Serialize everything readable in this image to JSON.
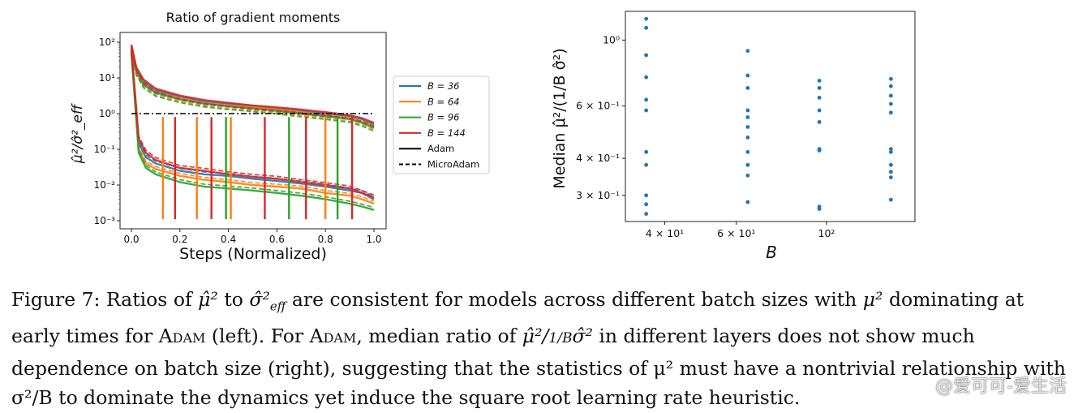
{
  "colors": {
    "b36": "#1f77b4",
    "b64": "#ff7f0e",
    "b96": "#2ca02c",
    "b144": "#d62728",
    "scatter": "#1f77b4"
  },
  "chart_data": [
    {
      "type": "line",
      "title": "Ratio of gradient moments",
      "xlabel": "Steps (Normalized)",
      "ylabel": "μ̂²/σ̂²_eff",
      "xlim": [
        0.0,
        1.0
      ],
      "ylim": [
        0.001,
        100
      ],
      "yscale": "log",
      "xticks": [
        "0.0",
        "0.2",
        "0.4",
        "0.6",
        "0.8",
        "1.0"
      ],
      "yticks": [
        "10²",
        "10¹",
        "10⁰",
        "10⁻¹",
        "10⁻²",
        "10⁻³"
      ],
      "reference_line": 1.0,
      "legend_position": "outside-right",
      "legend": [
        {
          "label": "B = 36",
          "color": "#1f77b4",
          "style": "solid"
        },
        {
          "label": "B = 64",
          "color": "#ff7f0e",
          "style": "solid"
        },
        {
          "label": "B = 96",
          "color": "#2ca02c",
          "style": "solid"
        },
        {
          "label": "B = 144",
          "color": "#d62728",
          "style": "solid"
        },
        {
          "label": "Adam",
          "color": "#000000",
          "style": "solid"
        },
        {
          "label": "MicroAdam",
          "color": "#000000",
          "style": "dashed"
        }
      ],
      "series": [
        {
          "name": "B = 36 upper",
          "color": "#1f77b4",
          "x": [
            0.0,
            0.02,
            0.05,
            0.1,
            0.2,
            0.3,
            0.4,
            0.5,
            0.6,
            0.7,
            0.8,
            0.9,
            0.95,
            1.0
          ],
          "y": [
            80,
            18,
            8,
            4.5,
            3.0,
            2.2,
            1.9,
            1.6,
            1.4,
            1.2,
            1.0,
            0.85,
            0.7,
            0.5
          ]
        },
        {
          "name": "B = 64 upper",
          "color": "#ff7f0e",
          "x": [
            0.0,
            0.02,
            0.05,
            0.1,
            0.2,
            0.3,
            0.4,
            0.5,
            0.6,
            0.7,
            0.8,
            0.9,
            0.95,
            1.0
          ],
          "y": [
            75,
            16,
            7,
            4.0,
            2.7,
            2.0,
            1.7,
            1.5,
            1.3,
            1.1,
            0.9,
            0.75,
            0.6,
            0.45
          ]
        },
        {
          "name": "B = 96 upper",
          "color": "#2ca02c",
          "x": [
            0.0,
            0.02,
            0.05,
            0.1,
            0.2,
            0.3,
            0.4,
            0.5,
            0.6,
            0.7,
            0.8,
            0.9,
            0.95,
            1.0
          ],
          "y": [
            70,
            15,
            6.5,
            3.8,
            2.5,
            1.9,
            1.6,
            1.4,
            1.2,
            1.0,
            0.85,
            0.7,
            0.55,
            0.4
          ]
        },
        {
          "name": "B = 144 upper",
          "color": "#d62728",
          "x": [
            0.0,
            0.02,
            0.05,
            0.1,
            0.2,
            0.3,
            0.4,
            0.5,
            0.6,
            0.7,
            0.8,
            0.9,
            0.95,
            1.0
          ],
          "y": [
            85,
            20,
            9,
            5.0,
            3.2,
            2.4,
            2.0,
            1.7,
            1.5,
            1.3,
            1.1,
            0.9,
            0.75,
            0.55
          ]
        },
        {
          "name": "B = 36 lower",
          "color": "#1f77b4",
          "x": [
            0.0,
            0.03,
            0.06,
            0.1,
            0.2,
            0.3,
            0.4,
            0.5,
            0.6,
            0.7,
            0.8,
            0.9,
            0.95,
            1.0
          ],
          "y": [
            60,
            0.15,
            0.06,
            0.04,
            0.025,
            0.02,
            0.018,
            0.015,
            0.013,
            0.011,
            0.009,
            0.007,
            0.006,
            0.004
          ]
        },
        {
          "name": "B = 64 lower",
          "color": "#ff7f0e",
          "x": [
            0.0,
            0.03,
            0.06,
            0.1,
            0.2,
            0.3,
            0.4,
            0.5,
            0.6,
            0.7,
            0.8,
            0.9,
            0.95,
            1.0
          ],
          "y": [
            55,
            0.1,
            0.04,
            0.028,
            0.018,
            0.014,
            0.012,
            0.01,
            0.009,
            0.008,
            0.006,
            0.005,
            0.004,
            0.003
          ]
        },
        {
          "name": "B = 96 lower",
          "color": "#2ca02c",
          "x": [
            0.0,
            0.03,
            0.06,
            0.1,
            0.2,
            0.3,
            0.4,
            0.5,
            0.6,
            0.7,
            0.8,
            0.9,
            0.95,
            1.0
          ],
          "y": [
            50,
            0.08,
            0.03,
            0.02,
            0.012,
            0.009,
            0.008,
            0.007,
            0.006,
            0.005,
            0.004,
            0.003,
            0.0025,
            0.002
          ]
        },
        {
          "name": "B = 144 lower",
          "color": "#d62728",
          "x": [
            0.0,
            0.03,
            0.06,
            0.1,
            0.2,
            0.3,
            0.4,
            0.5,
            0.6,
            0.7,
            0.8,
            0.9,
            0.95,
            1.0
          ],
          "y": [
            65,
            0.2,
            0.08,
            0.05,
            0.03,
            0.025,
            0.02,
            0.017,
            0.015,
            0.012,
            0.01,
            0.008,
            0.006,
            0.0045
          ]
        }
      ],
      "spikes": [
        {
          "x": 0.13,
          "color": "#ff7f0e"
        },
        {
          "x": 0.18,
          "color": "#d62728"
        },
        {
          "x": 0.27,
          "color": "#ff7f0e"
        },
        {
          "x": 0.33,
          "color": "#d62728"
        },
        {
          "x": 0.39,
          "color": "#2ca02c"
        },
        {
          "x": 0.41,
          "color": "#ff7f0e"
        },
        {
          "x": 0.55,
          "color": "#d62728"
        },
        {
          "x": 0.65,
          "color": "#2ca02c"
        },
        {
          "x": 0.72,
          "color": "#d62728"
        },
        {
          "x": 0.8,
          "color": "#ff7f0e"
        },
        {
          "x": 0.85,
          "color": "#2ca02c"
        },
        {
          "x": 0.91,
          "color": "#d62728"
        }
      ]
    },
    {
      "type": "scatter",
      "xlabel": "B",
      "ylabel": "Median μ̂²/(1/B σ̂²)",
      "xscale": "log",
      "yscale": "log",
      "xlim": [
        32,
        165
      ],
      "ylim": [
        0.245,
        1.25
      ],
      "xticks": [
        {
          "value": 40,
          "label": "4 × 10¹"
        },
        {
          "value": 60,
          "label": "6 × 10¹"
        },
        {
          "value": 100,
          "label": "10²"
        }
      ],
      "yticks": [
        {
          "value": 1.0,
          "label": "10⁰"
        },
        {
          "value": 0.6,
          "label": "6 × 10⁻¹"
        },
        {
          "value": 0.4,
          "label": "4 × 10⁻¹"
        },
        {
          "value": 0.3,
          "label": "3 × 10⁻¹"
        }
      ],
      "points": [
        {
          "x": 36,
          "y": 1.18
        },
        {
          "x": 36,
          "y": 1.1
        },
        {
          "x": 36,
          "y": 0.89
        },
        {
          "x": 36,
          "y": 0.75
        },
        {
          "x": 36,
          "y": 0.63
        },
        {
          "x": 36,
          "y": 0.58
        },
        {
          "x": 36,
          "y": 0.42
        },
        {
          "x": 36,
          "y": 0.38
        },
        {
          "x": 36,
          "y": 0.3
        },
        {
          "x": 36,
          "y": 0.28
        },
        {
          "x": 36,
          "y": 0.26
        },
        {
          "x": 64,
          "y": 0.92
        },
        {
          "x": 64,
          "y": 0.76
        },
        {
          "x": 64,
          "y": 0.69
        },
        {
          "x": 64,
          "y": 0.58
        },
        {
          "x": 64,
          "y": 0.55
        },
        {
          "x": 64,
          "y": 0.51
        },
        {
          "x": 64,
          "y": 0.47
        },
        {
          "x": 64,
          "y": 0.42
        },
        {
          "x": 64,
          "y": 0.38
        },
        {
          "x": 64,
          "y": 0.35
        },
        {
          "x": 64,
          "y": 0.285
        },
        {
          "x": 96,
          "y": 0.73
        },
        {
          "x": 96,
          "y": 0.69
        },
        {
          "x": 96,
          "y": 0.64
        },
        {
          "x": 96,
          "y": 0.58
        },
        {
          "x": 96,
          "y": 0.53
        },
        {
          "x": 96,
          "y": 0.43
        },
        {
          "x": 96,
          "y": 0.425
        },
        {
          "x": 96,
          "y": 0.275
        },
        {
          "x": 96,
          "y": 0.27
        },
        {
          "x": 144,
          "y": 0.74
        },
        {
          "x": 144,
          "y": 0.7
        },
        {
          "x": 144,
          "y": 0.65
        },
        {
          "x": 144,
          "y": 0.61
        },
        {
          "x": 144,
          "y": 0.57
        },
        {
          "x": 144,
          "y": 0.43
        },
        {
          "x": 144,
          "y": 0.42
        },
        {
          "x": 144,
          "y": 0.38
        },
        {
          "x": 144,
          "y": 0.36
        },
        {
          "x": 144,
          "y": 0.345
        },
        {
          "x": 144,
          "y": 0.29
        }
      ]
    }
  ],
  "caption": {
    "line1": {
      "a": "Figure 7: Ratios of ",
      "b": "μ̂²",
      "c": " to ",
      "d": "σ̂²",
      "d_sub": "eff",
      "e": " are consistent for models across different batch sizes with ",
      "f": "μ²",
      "g": " dominating at"
    },
    "line2": {
      "a": "early times for ",
      "b": "Adam",
      "c": " (left).  For ",
      "d": "Adam",
      "e": ", median ratio of ",
      "f": "μ̂²/",
      "g": "1/B",
      "h": "σ̂²",
      "i": " in different layers does not show much"
    },
    "line3": "dependence on batch size (right), suggesting that the statistics of μ² must have a nontrivial relationship with",
    "line4": "σ²/B to dominate the dynamics yet induce the square root learning rate heuristic."
  },
  "watermark": "@爱可可-爱生活"
}
